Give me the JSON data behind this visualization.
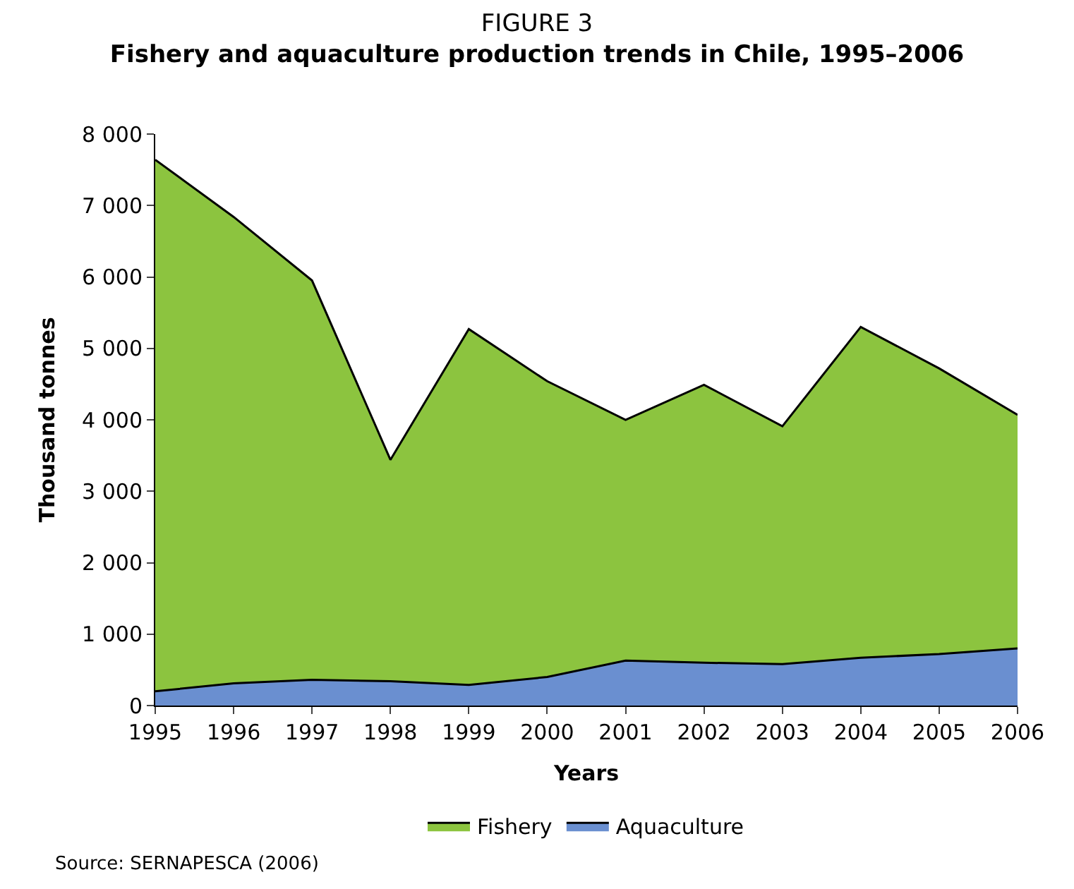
{
  "chart_data": {
    "type": "area",
    "stacked": true,
    "title": "FIGURE 3",
    "subtitle": "Fishery and aquaculture production trends in Chile, 1995–2006",
    "xlabel": "Years",
    "ylabel": "Thousand tonnes",
    "x": [
      1995,
      1996,
      1997,
      1998,
      1999,
      2000,
      2001,
      2002,
      2003,
      2004,
      2005,
      2006
    ],
    "series": [
      {
        "name": "Aquaculture",
        "color": "#6a8fd0",
        "values": [
          200,
          310,
          360,
          340,
          290,
          400,
          630,
          600,
          580,
          670,
          720,
          800
        ]
      },
      {
        "name": "Fishery",
        "color": "#8cc43f",
        "values": [
          7440,
          6530,
          5590,
          3100,
          4980,
          4140,
          3370,
          3890,
          3330,
          4630,
          4000,
          3270
        ]
      }
    ],
    "xlim": [
      1995,
      2006
    ],
    "xticks": [
      1995,
      1996,
      1997,
      1998,
      1999,
      2000,
      2001,
      2002,
      2003,
      2004,
      2005,
      2006
    ],
    "ylim": [
      0,
      8000
    ],
    "yticks": [
      0,
      {
        "value": 1000,
        "label": "1 000"
      },
      {
        "value": 2000,
        "label": "2 000"
      },
      {
        "value": 3000,
        "label": "3 000"
      },
      {
        "value": 4000,
        "label": "4 000"
      },
      {
        "value": 5000,
        "label": "5 000"
      },
      {
        "value": 6000,
        "label": "6 000"
      },
      {
        "value": 7000,
        "label": "7 000"
      },
      {
        "value": 8000,
        "label": "8 000"
      }
    ],
    "legend": "bottom",
    "annotations": [
      "Source: SERNAPESCA (2006)"
    ]
  }
}
